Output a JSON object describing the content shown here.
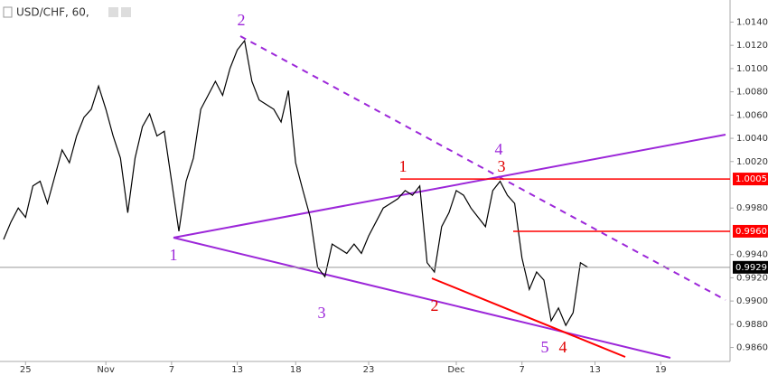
{
  "chart_data": {
    "type": "line",
    "title": "USD/CHF, 60,",
    "color": "#000000",
    "categories": [
      null,
      null,
      null,
      "25",
      null,
      null,
      null,
      null,
      null,
      null,
      null,
      null,
      null,
      null,
      "Nov",
      null,
      null,
      null,
      null,
      null,
      null,
      null,
      null,
      "7",
      null,
      null,
      null,
      null,
      null,
      null,
      null,
      null,
      "13",
      null,
      null,
      null,
      null,
      null,
      null,
      null,
      "18",
      null,
      null,
      null,
      null,
      null,
      null,
      null,
      null,
      null,
      "23",
      null,
      null,
      null,
      null,
      null,
      null,
      null,
      null,
      null,
      null,
      null,
      "Dec",
      null,
      null,
      null,
      null,
      null,
      null,
      null,
      null,
      "7",
      null,
      null,
      null,
      null,
      null,
      null,
      null,
      null,
      null,
      "13",
      null,
      null,
      null,
      null,
      null,
      null,
      null,
      null,
      "19",
      null,
      null,
      null,
      null,
      null,
      null,
      null,
      null,
      null
    ],
    "values": [
      0.9953,
      0.9968,
      0.998,
      0.9972,
      0.9999,
      1.0003,
      0.9984,
      1.0007,
      1.003,
      1.0019,
      1.0042,
      1.0058,
      1.0065,
      1.0085,
      1.0065,
      1.0042,
      1.0023,
      0.9976,
      1.0023,
      1.005,
      1.0061,
      1.0042,
      1.0046,
      1.0003,
      0.996,
      1.0003,
      1.0023,
      1.0065,
      1.0077,
      1.0089,
      1.0077,
      1.01,
      1.0116,
      1.0124,
      1.0089,
      1.0073,
      1.0069,
      1.0065,
      1.0054,
      1.0081,
      1.0019,
      0.9995,
      0.9972,
      0.9929,
      0.9921,
      0.9949,
      0.9945,
      0.9941,
      0.9949,
      0.9941,
      0.9956,
      0.9968,
      0.998,
      0.9984,
      0.9988,
      0.9995,
      0.9991,
      0.9999,
      0.9933,
      0.9925,
      0.9964,
      0.9976,
      0.9995,
      0.9991,
      0.998,
      0.9972,
      0.9964,
      0.9995,
      1.0003,
      0.9991,
      0.9984,
      0.9937,
      0.991,
      0.9925,
      0.9918,
      0.9883,
      0.9894,
      0.9879,
      0.989,
      0.9933,
      0.9929,
      null,
      null,
      null,
      null,
      null,
      null,
      null,
      null,
      null,
      null,
      null,
      null,
      null,
      null,
      null,
      null,
      null,
      null,
      null
    ],
    "ylim": [
      0.9848,
      1.0159
    ],
    "yticks": [
      {
        "value": 1.014,
        "label": "1.0140"
      },
      {
        "value": 1.012,
        "label": "1.0120"
      },
      {
        "value": 1.01,
        "label": "1.0100"
      },
      {
        "value": 1.008,
        "label": "1.0080"
      },
      {
        "value": 1.006,
        "label": "1.0060"
      },
      {
        "value": 1.004,
        "label": "1.0040"
      },
      {
        "value": 1.002,
        "label": "1.0020"
      },
      {
        "value": 0.998,
        "label": "0.9980"
      },
      {
        "value": 0.994,
        "label": "0.9940"
      },
      {
        "value": 0.992,
        "label": "0.9920"
      },
      {
        "value": 0.99,
        "label": "0.9900"
      },
      {
        "value": 0.988,
        "label": "0.9880"
      },
      {
        "value": 0.986,
        "label": "0.9860"
      }
    ],
    "levels": [
      {
        "value": 1.0005,
        "label": "1.0005",
        "color": "#ff0000"
      },
      {
        "value": 0.996,
        "label": "0.9960",
        "color": "#ff0000"
      },
      {
        "value": 0.9929,
        "label": "0.9929",
        "color": "#000000"
      }
    ],
    "annotations": [
      {
        "text": "2",
        "color": "#9c27d9"
      },
      {
        "text": "1",
        "color": "#9c27d9"
      },
      {
        "text": "3",
        "color": "#9c27d9"
      },
      {
        "text": "4",
        "color": "#9c27d9"
      },
      {
        "text": "5",
        "color": "#9c27d9"
      },
      {
        "text": "1",
        "color": "#e00000"
      },
      {
        "text": "3",
        "color": "#e00000"
      },
      {
        "text": "2",
        "color": "#e00000"
      },
      {
        "text": "4",
        "color": "#e00000"
      }
    ]
  }
}
